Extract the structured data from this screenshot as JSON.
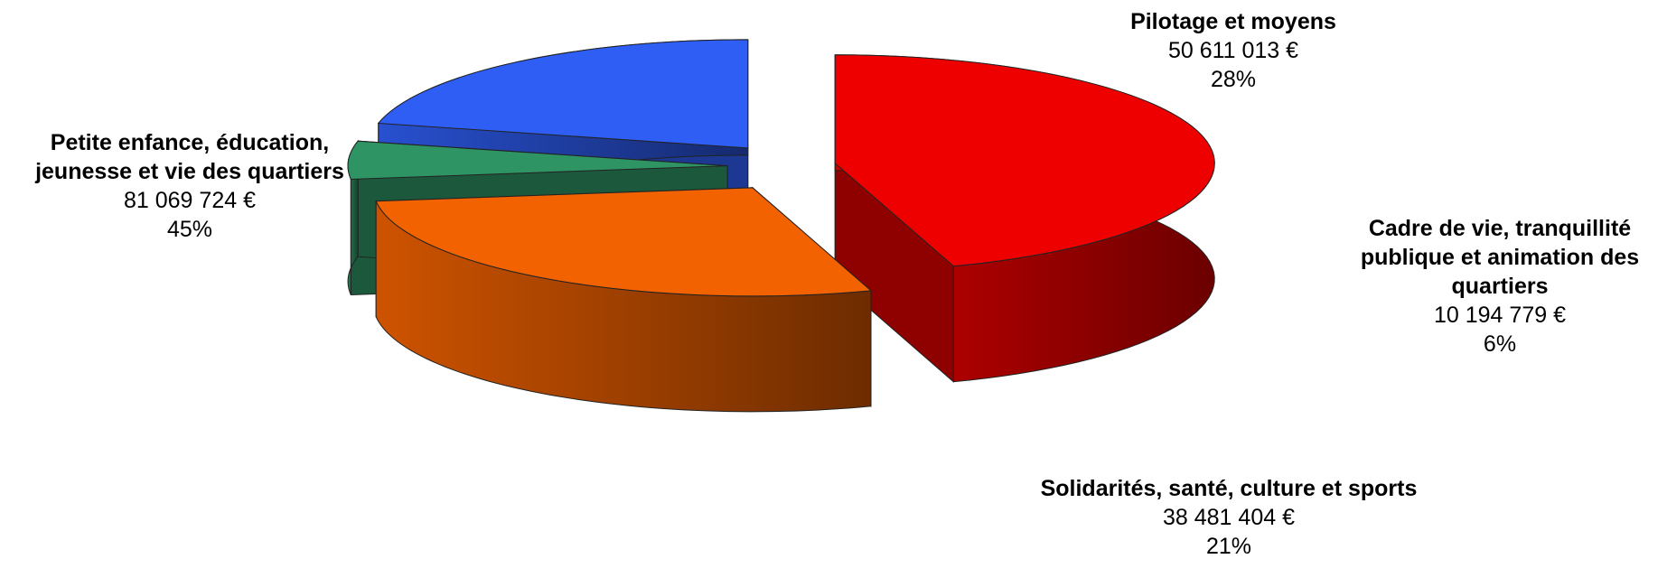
{
  "chart_data": {
    "type": "pie",
    "title": "",
    "legend": "none",
    "currency": "€",
    "slices": [
      {
        "name": "Petite enfance, éducation, jeunesse et vie des quartiers",
        "value": 81069724,
        "value_label": "81 069 724 €",
        "percent_label": "45%",
        "color": "#ee0000"
      },
      {
        "name": "Pilotage et moyens",
        "value": 50611013,
        "value_label": "50 611 013 €",
        "percent_label": "28%",
        "color": "#f26200"
      },
      {
        "name": "Cadre de vie, tranquillité publique et animation des quartiers",
        "value": 10194779,
        "value_label": "10 194 779 €",
        "percent_label": "6%",
        "color": "#2e9464"
      },
      {
        "name": "Solidarités, santé, culture et sports",
        "value": 38481404,
        "value_label": "38 481 404 €",
        "percent_label": "21%",
        "color": "#2f5ef5"
      }
    ]
  }
}
